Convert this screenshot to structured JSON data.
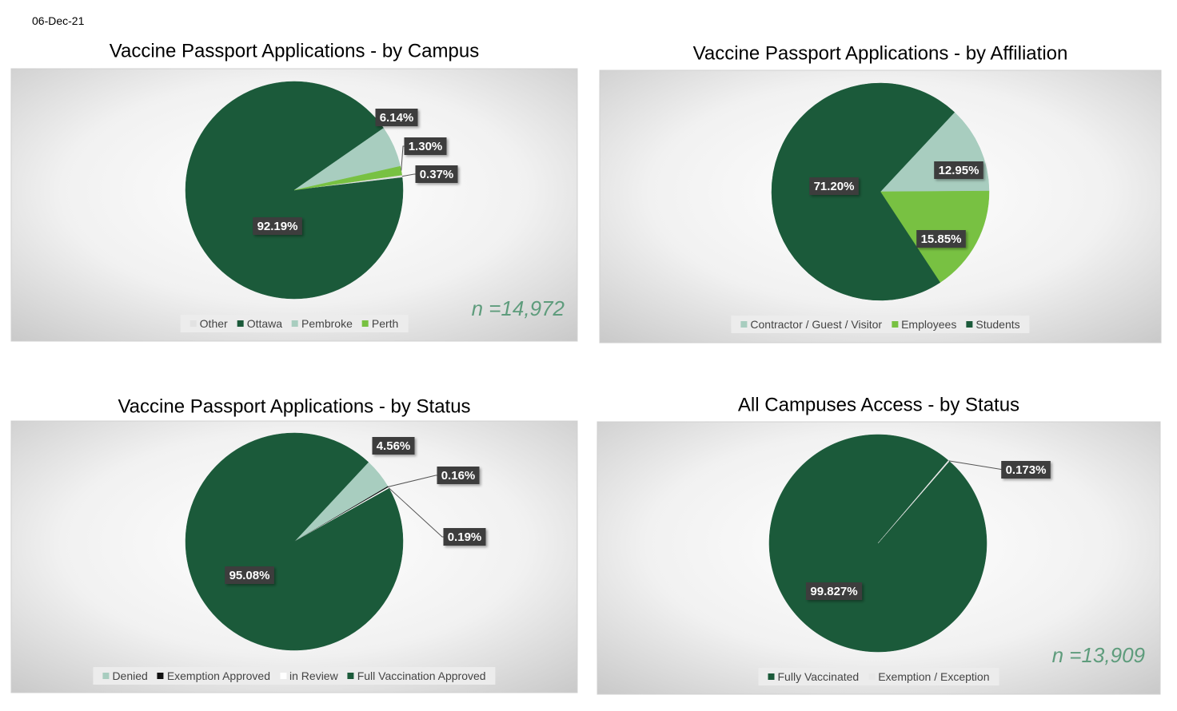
{
  "date": "06-Dec-21",
  "chart_data": [
    {
      "type": "pie",
      "title": "Vaccine Passport Applications - by Campus",
      "categories": [
        "Other",
        "Ottawa",
        "Pembroke",
        "Perth"
      ],
      "values": [
        0.37,
        92.19,
        6.14,
        1.3
      ],
      "value_labels": [
        "0.37%",
        "92.19%",
        "6.14%",
        "1.30%"
      ],
      "colors": [
        "#e2e2e2",
        "#1b5a3a",
        "#a8cdbf",
        "#78c142"
      ],
      "annotation": "n =14,972"
    },
    {
      "type": "pie",
      "title": "Vaccine Passport Applications - by Affiliation",
      "categories": [
        "Contractor / Guest / Visitor",
        "Employees",
        "Students"
      ],
      "values": [
        12.95,
        15.85,
        71.2
      ],
      "value_labels": [
        "12.95%",
        "15.85%",
        "71.20%"
      ],
      "colors": [
        "#a8cdbf",
        "#78c142",
        "#1b5a3a"
      ]
    },
    {
      "type": "pie",
      "title": "Vaccine Passport Applications - by Status",
      "categories": [
        "Denied",
        "Exemption Approved",
        "in Review",
        "Full Vaccination Approved"
      ],
      "values": [
        4.56,
        0.16,
        0.19,
        95.08
      ],
      "value_labels": [
        "4.56%",
        "0.16%",
        "0.19%",
        "95.08%"
      ],
      "colors": [
        "#a8cdbf",
        "#111111",
        "#ffffff",
        "#1b5a3a"
      ]
    },
    {
      "type": "pie",
      "title": "All Campuses Access - by Status",
      "categories": [
        "Fully Vaccinated",
        "Exemption / Exception"
      ],
      "values": [
        99.827,
        0.173
      ],
      "value_labels": [
        "99.827%",
        "0.173%"
      ],
      "colors": [
        "#1b5a3a",
        "#e8e8e8"
      ],
      "annotation": "n =13,909"
    }
  ]
}
